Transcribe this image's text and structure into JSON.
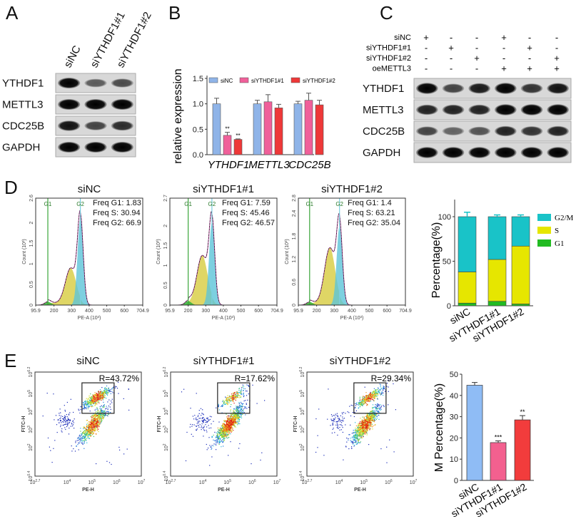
{
  "panel_labels": [
    "A",
    "B",
    "C",
    "D",
    "E"
  ],
  "panel_a": {
    "columns": [
      "siNC",
      "siYTHDF1#1",
      "siYTHDF1#2"
    ],
    "rows": [
      {
        "label": "YTHDF1",
        "band_intensity": [
          1,
          0.45,
          0.55
        ]
      },
      {
        "label": "METTL3",
        "band_intensity": [
          1,
          1,
          1
        ]
      },
      {
        "label": "CDC25B",
        "band_intensity": [
          0.9,
          0.6,
          0.75
        ]
      },
      {
        "label": "GAPDH",
        "band_intensity": [
          1,
          1,
          1
        ]
      }
    ]
  },
  "panel_c": {
    "conditions": [
      {
        "label": "siNC",
        "signs": [
          "+",
          "-",
          "-",
          "+",
          "-",
          "-"
        ]
      },
      {
        "label": "siYTHDF1#1",
        "signs": [
          "-",
          "+",
          "-",
          "-",
          "+",
          "-"
        ]
      },
      {
        "label": "siYTHDF1#2",
        "signs": [
          "-",
          "-",
          "+",
          "-",
          "-",
          "+"
        ]
      },
      {
        "label": "oeMETTL3",
        "signs": [
          "-",
          "-",
          "-",
          "+",
          "+",
          "+"
        ]
      }
    ],
    "rows": [
      {
        "label": "YTHDF1",
        "band_intensity": [
          1,
          0.6,
          0.85,
          1,
          0.7,
          0.9
        ]
      },
      {
        "label": "METTL3",
        "band_intensity": [
          0.8,
          0.8,
          0.8,
          1,
          1,
          1
        ]
      },
      {
        "label": "CDC25B",
        "band_intensity": [
          0.6,
          0.4,
          0.5,
          0.8,
          0.7,
          0.8
        ]
      },
      {
        "label": "GAPDH",
        "band_intensity": [
          1,
          1,
          1,
          1,
          1,
          1
        ]
      }
    ]
  },
  "chart_data": [
    {
      "id": "B",
      "type": "bar",
      "categories": [
        "YTHDF1",
        "METTL3",
        "CDC25B"
      ],
      "ylabel": "relative expression",
      "ylim": [
        0,
        1.5
      ],
      "yticks": [
        "0.0",
        "0.5",
        "1.0",
        "1.5"
      ],
      "series": [
        {
          "name": "siNC",
          "color": "#8fb4e8",
          "values": [
            1.0,
            1.0,
            1.0
          ],
          "errors": [
            0.11,
            0.07,
            0.05
          ],
          "stars": [
            "",
            "",
            ""
          ]
        },
        {
          "name": "siYTHDF1#1",
          "color": "#f0609a",
          "values": [
            0.38,
            1.04,
            1.07
          ],
          "errors": [
            0.06,
            0.14,
            0.14
          ],
          "stars": [
            "**",
            "",
            ""
          ]
        },
        {
          "name": "siYTHDF1#2",
          "color": "#ee3838",
          "values": [
            0.3,
            0.92,
            0.98
          ],
          "errors": [
            0.01,
            0.07,
            0.09
          ],
          "stars": [
            "**",
            "",
            ""
          ]
        }
      ],
      "legend": "top"
    },
    {
      "id": "D-hist",
      "type": "area",
      "xlabel": "PE-A (10³)",
      "ylabel": "Count (10³)",
      "xlim": [
        95.9,
        704.9
      ],
      "xticks": [
        "95.9",
        "200",
        "300",
        "400",
        "500",
        "600",
        "704.9"
      ],
      "gate_labels": [
        "G1",
        "G2"
      ],
      "plots": [
        {
          "title": "siNC",
          "freq": [
            "Freq G1: 1.83",
            "Freq S: 30.94",
            "Freq G2: 66.9"
          ],
          "g1_gate": 165,
          "g2_gate": 350,
          "ymax": 2.6,
          "yticks": [
            "0",
            "0.5",
            "1",
            "1.5",
            "2",
            "2.6"
          ],
          "peak": 2.35,
          "s_peak": 0.85,
          "g1_level": 0.08
        },
        {
          "title": "siYTHDF1#1",
          "freq": [
            "Freq G1: 7.59",
            "Freq S: 45.46",
            "Freq G2: 46.57"
          ],
          "g1_gate": 200,
          "g2_gate": 335,
          "ymax": 2.7,
          "yticks": [
            "0",
            "0.5",
            "1",
            "1.5",
            "2",
            "2.7"
          ],
          "peak": 2.45,
          "s_peak": 1.2,
          "g1_level": 0.1
        },
        {
          "title": "siYTHDF1#2",
          "freq": [
            "Freq G1: 1.4",
            "Freq S: 63.21",
            "Freq G2: 35.04"
          ],
          "g1_gate": 160,
          "g2_gate": 330,
          "ymax": 2.8,
          "yticks": [
            "0",
            "0.6",
            "1.2",
            "1.8",
            "2.4",
            "2.8"
          ],
          "peak": 2.5,
          "s_peak": 1.45,
          "g1_level": 0.08
        }
      ]
    },
    {
      "id": "D-bar",
      "type": "bar",
      "stacked": true,
      "categories": [
        "siNC",
        "siYTHDF1#1",
        "siYTHDF1#2"
      ],
      "ylabel": "Percentage(%)",
      "ylim": [
        0,
        100
      ],
      "yticks": [
        "0",
        "50",
        "100"
      ],
      "series": [
        {
          "name": "G1",
          "color": "#22bb22",
          "values": [
            3,
            5,
            2
          ]
        },
        {
          "name": "S",
          "color": "#e6e600",
          "values": [
            35,
            47,
            65
          ]
        },
        {
          "name": "G2/M",
          "color": "#19c3c8",
          "values": [
            62,
            48,
            33
          ]
        }
      ],
      "legend": "right"
    },
    {
      "id": "E-scatter",
      "type": "scatter",
      "xlabel": "PE-H",
      "ylabel": "FITC-H",
      "xticks": [
        {
          "base": "10",
          "exp": "2.7"
        },
        {
          "base": "10",
          "exp": "4"
        },
        {
          "base": "10",
          "exp": "5"
        },
        {
          "base": "10",
          "exp": "6"
        },
        {
          "base": "10",
          "exp": "7"
        }
      ],
      "yticks": [
        {
          "base": "10",
          "exp": "0.4"
        },
        {
          "base": "10",
          "exp": "2"
        },
        {
          "base": "10",
          "exp": "3"
        },
        {
          "base": "10",
          "exp": "4"
        },
        {
          "base": "10",
          "exp": "5"
        },
        {
          "base": "10",
          "exp": "6.2"
        }
      ],
      "plots": [
        {
          "title": "siNC",
          "gate_text": "R=43.72%",
          "upper_fraction": 0.44
        },
        {
          "title": "siYTHDF1#1",
          "gate_text": "R=17.62%",
          "upper_fraction": 0.18
        },
        {
          "title": "siYTHDF1#2",
          "gate_text": "R=29.34%",
          "upper_fraction": 0.29
        }
      ]
    },
    {
      "id": "E-bar",
      "type": "bar",
      "categories": [
        "siNC",
        "siYTHDF1#1",
        "siYTHDF1#2"
      ],
      "ylabel": "M Percentage(%)",
      "ylim": [
        0,
        50
      ],
      "yticks": [
        "0",
        "10",
        "20",
        "30",
        "40",
        "50"
      ],
      "values": [
        44.8,
        17.8,
        28.5
      ],
      "errors": [
        1.3,
        0.8,
        2.0
      ],
      "stars": [
        "",
        "***",
        "**"
      ],
      "colors": [
        "#8fbcf5",
        "#f3608f",
        "#f23c3c"
      ]
    }
  ]
}
